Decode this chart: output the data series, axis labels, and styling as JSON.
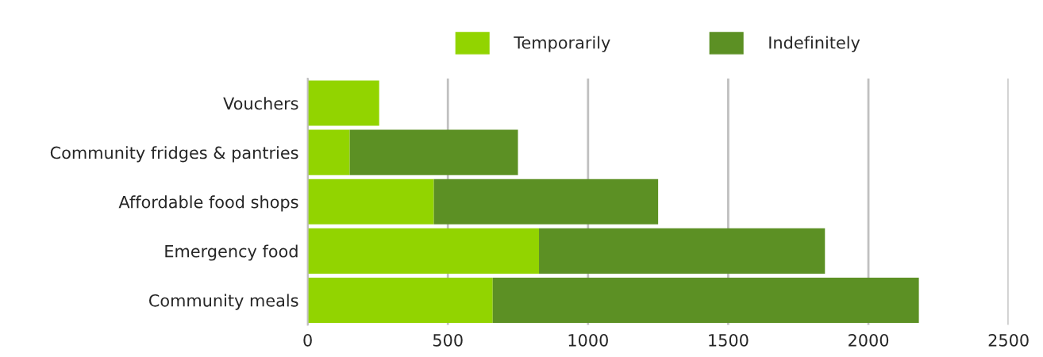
{
  "chart_data": {
    "type": "bar",
    "orientation": "horizontal",
    "stacked": true,
    "categories": [
      "Vouchers",
      "Community fridges & pantries",
      "Affordable food shops",
      "Emergency food",
      "Community meals"
    ],
    "series": [
      {
        "name": "Temporarily",
        "color": "#92d400",
        "values": [
          255,
          150,
          450,
          825,
          660
        ]
      },
      {
        "name": "Indefinitely",
        "color": "#5c9024",
        "values": [
          null,
          600,
          800,
          1020,
          1520
        ]
      }
    ],
    "xlim": [
      0,
      2500
    ],
    "xticks": [
      0,
      500,
      1000,
      1500,
      2000,
      2500
    ],
    "grid": "x",
    "legend": "top"
  }
}
